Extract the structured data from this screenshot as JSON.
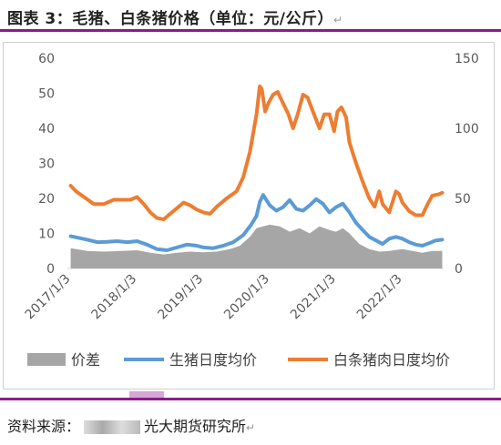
{
  "header": {
    "title": "图表 3：毛猪、白条猪价格（单位：元/公斤）",
    "return_mark": "↵"
  },
  "footer": {
    "source_prefix": "资料来源：",
    "source_org": "光大期货研究所",
    "return_mark": "↵"
  },
  "colors": {
    "spread": "#a6a6a6",
    "live_hog": "#5b9bd5",
    "pork": "#ed7d31",
    "rule": "#8b1a8b"
  },
  "chart_data": {
    "type": "line",
    "title": "",
    "x_tick_labels": [
      "2017/1/3",
      "2018/1/3",
      "2019/1/3",
      "2020/1/3",
      "2021/1/3",
      "2022/1/3"
    ],
    "y_left": {
      "ylim": [
        0,
        60
      ],
      "ticks": [
        "0",
        "10",
        "20",
        "30",
        "40",
        "50",
        "60"
      ]
    },
    "y_right": {
      "ylim": [
        0,
        150
      ],
      "ticks": [
        "0",
        "50",
        "100",
        "150"
      ]
    },
    "grid": false,
    "legend_position": "bottom",
    "x_unit": "year",
    "series": [
      {
        "name": "价差",
        "kind": "area",
        "axis": "left",
        "points": [
          [
            2017.0,
            5.8
          ],
          [
            2017.25,
            5.0
          ],
          [
            2017.5,
            4.8
          ],
          [
            2017.75,
            5.0
          ],
          [
            2018.0,
            5.2
          ],
          [
            2018.2,
            4.5
          ],
          [
            2018.4,
            4.0
          ],
          [
            2018.6,
            4.5
          ],
          [
            2018.8,
            4.8
          ],
          [
            2019.0,
            4.6
          ],
          [
            2019.2,
            4.8
          ],
          [
            2019.4,
            5.5
          ],
          [
            2019.55,
            6.5
          ],
          [
            2019.7,
            9.0
          ],
          [
            2019.8,
            11.5
          ],
          [
            2019.9,
            12.0
          ],
          [
            2020.0,
            12.5
          ],
          [
            2020.15,
            12.0
          ],
          [
            2020.3,
            10.5
          ],
          [
            2020.45,
            11.5
          ],
          [
            2020.6,
            10.0
          ],
          [
            2020.75,
            12.0
          ],
          [
            2020.9,
            11.0
          ],
          [
            2021.0,
            10.5
          ],
          [
            2021.1,
            11.5
          ],
          [
            2021.2,
            10.0
          ],
          [
            2021.35,
            7.0
          ],
          [
            2021.5,
            5.5
          ],
          [
            2021.65,
            4.8
          ],
          [
            2021.8,
            5.0
          ],
          [
            2022.0,
            5.5
          ],
          [
            2022.15,
            5.0
          ],
          [
            2022.3,
            4.5
          ],
          [
            2022.45,
            5.0
          ],
          [
            2022.6,
            5.0
          ]
        ]
      },
      {
        "name": "生猪日度均价",
        "kind": "line",
        "axis": "left",
        "points": [
          [
            2017.0,
            9.2
          ],
          [
            2017.1,
            8.8
          ],
          [
            2017.25,
            8.2
          ],
          [
            2017.4,
            7.5
          ],
          [
            2017.55,
            7.6
          ],
          [
            2017.7,
            7.8
          ],
          [
            2017.85,
            7.5
          ],
          [
            2018.0,
            7.8
          ],
          [
            2018.15,
            6.8
          ],
          [
            2018.3,
            5.5
          ],
          [
            2018.45,
            5.2
          ],
          [
            2018.6,
            6.0
          ],
          [
            2018.75,
            6.8
          ],
          [
            2018.9,
            6.5
          ],
          [
            2019.0,
            6.0
          ],
          [
            2019.15,
            5.8
          ],
          [
            2019.3,
            6.5
          ],
          [
            2019.45,
            7.5
          ],
          [
            2019.6,
            9.5
          ],
          [
            2019.72,
            12.5
          ],
          [
            2019.8,
            15.0
          ],
          [
            2019.85,
            19.0
          ],
          [
            2019.9,
            21.0
          ],
          [
            2019.95,
            19.5
          ],
          [
            2020.0,
            18.0
          ],
          [
            2020.1,
            16.5
          ],
          [
            2020.2,
            17.5
          ],
          [
            2020.3,
            19.5
          ],
          [
            2020.4,
            17.0
          ],
          [
            2020.5,
            16.5
          ],
          [
            2020.6,
            18.0
          ],
          [
            2020.7,
            19.8
          ],
          [
            2020.8,
            18.5
          ],
          [
            2020.9,
            16.0
          ],
          [
            2021.0,
            17.5
          ],
          [
            2021.1,
            18.5
          ],
          [
            2021.2,
            16.0
          ],
          [
            2021.3,
            13.0
          ],
          [
            2021.4,
            11.0
          ],
          [
            2021.5,
            9.0
          ],
          [
            2021.6,
            8.0
          ],
          [
            2021.7,
            7.0
          ],
          [
            2021.8,
            8.5
          ],
          [
            2021.9,
            9.0
          ],
          [
            2022.0,
            8.5
          ],
          [
            2022.1,
            7.5
          ],
          [
            2022.2,
            6.8
          ],
          [
            2022.3,
            6.5
          ],
          [
            2022.4,
            7.2
          ],
          [
            2022.5,
            8.0
          ],
          [
            2022.6,
            8.2
          ]
        ]
      },
      {
        "name": "白条猪肉日度均价",
        "kind": "line",
        "axis": "right",
        "points": [
          [
            2017.0,
            59
          ],
          [
            2017.08,
            55
          ],
          [
            2017.2,
            51
          ],
          [
            2017.35,
            46
          ],
          [
            2017.5,
            46
          ],
          [
            2017.65,
            49
          ],
          [
            2017.8,
            49
          ],
          [
            2017.9,
            49
          ],
          [
            2018.0,
            51
          ],
          [
            2018.1,
            46
          ],
          [
            2018.2,
            40
          ],
          [
            2018.3,
            36
          ],
          [
            2018.4,
            35
          ],
          [
            2018.5,
            39
          ],
          [
            2018.6,
            43
          ],
          [
            2018.7,
            47
          ],
          [
            2018.8,
            45
          ],
          [
            2018.9,
            42
          ],
          [
            2019.0,
            40
          ],
          [
            2019.1,
            39
          ],
          [
            2019.2,
            44
          ],
          [
            2019.35,
            50
          ],
          [
            2019.5,
            55
          ],
          [
            2019.6,
            65
          ],
          [
            2019.7,
            83
          ],
          [
            2019.8,
            110
          ],
          [
            2019.85,
            130
          ],
          [
            2019.88,
            128
          ],
          [
            2019.93,
            112
          ],
          [
            2019.98,
            118
          ],
          [
            2020.05,
            124
          ],
          [
            2020.12,
            126
          ],
          [
            2020.2,
            118
          ],
          [
            2020.28,
            110
          ],
          [
            2020.35,
            100
          ],
          [
            2020.42,
            110
          ],
          [
            2020.5,
            124
          ],
          [
            2020.57,
            122
          ],
          [
            2020.65,
            112
          ],
          [
            2020.75,
            100
          ],
          [
            2020.82,
            110
          ],
          [
            2020.9,
            110
          ],
          [
            2020.97,
            98
          ],
          [
            2021.02,
            112
          ],
          [
            2021.08,
            115
          ],
          [
            2021.15,
            108
          ],
          [
            2021.2,
            90
          ],
          [
            2021.3,
            75
          ],
          [
            2021.4,
            62
          ],
          [
            2021.5,
            50
          ],
          [
            2021.58,
            44
          ],
          [
            2021.65,
            55
          ],
          [
            2021.7,
            46
          ],
          [
            2021.8,
            40
          ],
          [
            2021.9,
            55
          ],
          [
            2021.95,
            53
          ],
          [
            2022.0,
            47
          ],
          [
            2022.1,
            41
          ],
          [
            2022.2,
            38
          ],
          [
            2022.3,
            38
          ],
          [
            2022.38,
            46
          ],
          [
            2022.45,
            52
          ],
          [
            2022.55,
            53
          ],
          [
            2022.6,
            54
          ]
        ]
      }
    ]
  }
}
